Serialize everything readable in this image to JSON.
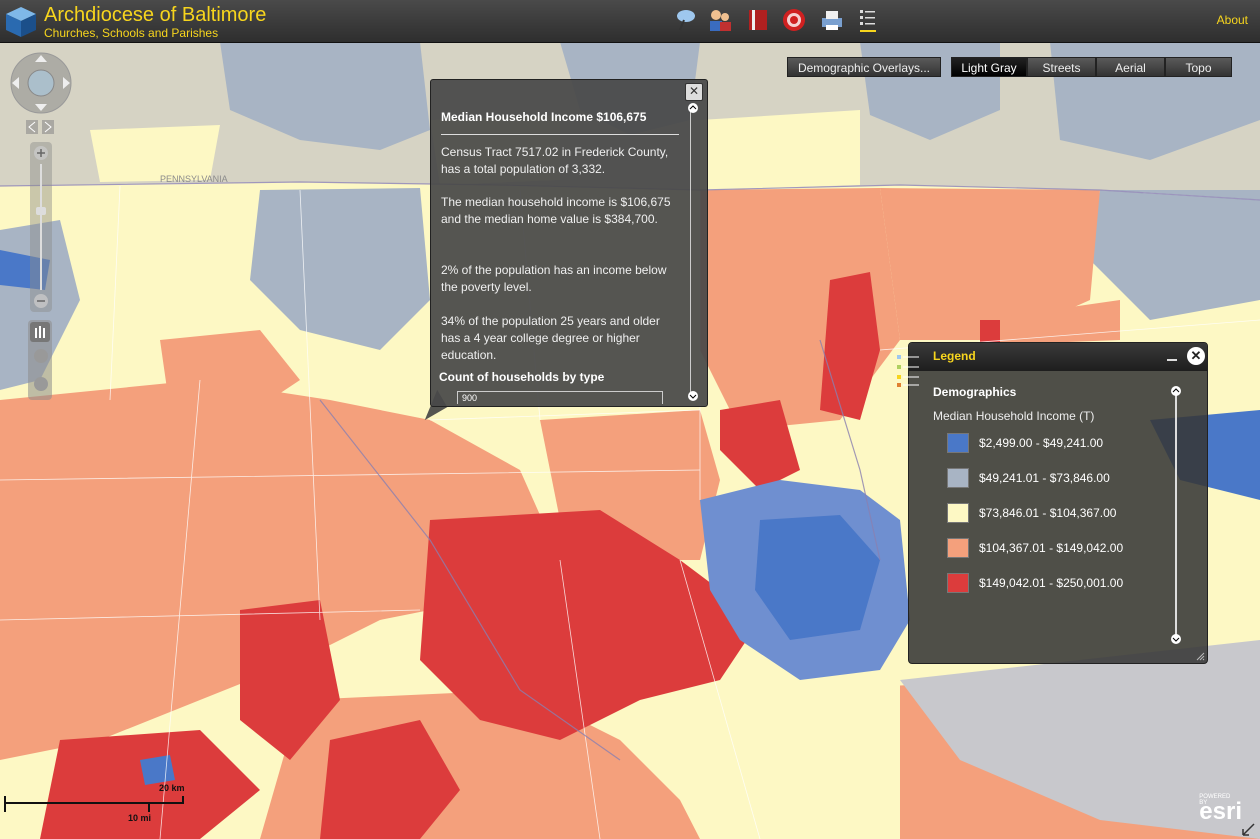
{
  "header": {
    "title": "Archdiocese of Baltimore",
    "subtitle": "Churches, Schools and Parishes",
    "about_label": "About",
    "tools": [
      "pushpin-icon",
      "people-icon",
      "book-icon",
      "target-icon",
      "print-icon",
      "list-icon"
    ]
  },
  "toolbar": {
    "demographic_overlays_label": "Demographic Overlays...",
    "basemaps": [
      {
        "label": "Light Gray",
        "active": true
      },
      {
        "label": "Streets",
        "active": false
      },
      {
        "label": "Aerial",
        "active": false
      },
      {
        "label": "Topo",
        "active": false
      }
    ]
  },
  "popup": {
    "title": "Median Household Income $106,675",
    "p1": "Census Tract 7517.02 in Frederick County, has a total population of 3,332.",
    "p2": "The median household income is $106,675 and the median home value is $384,700.",
    "p3": "2% of the population has an income below the poverty level.",
    "p4": "34% of the population 25 years and older has a 4 year college degree or higher education.",
    "chart_title": "Count of households by type",
    "chart_axis_value": "900"
  },
  "legend": {
    "title": "Legend",
    "group": "Demographics",
    "layer": "Median Household Income (T)",
    "items": [
      {
        "label": "$2,499.00 - $49,241.00",
        "color": "#4a78c8"
      },
      {
        "label": "$49,241.01 - $73,846.00",
        "color": "#a8b4c4"
      },
      {
        "label": "$73,846.01 - $104,367.00",
        "color": "#fdf8c4"
      },
      {
        "label": "$104,367.01 - $149,042.00",
        "color": "#f4a07c"
      },
      {
        "label": "$149,042.01 - $250,001.00",
        "color": "#dc3c3c"
      }
    ]
  },
  "map": {
    "state_label": "PENNSYLVANIA",
    "colors": {
      "low": "#4a78c8",
      "lowmid": "#a8b4c4",
      "mid": "#fdf8c4",
      "highmid": "#f4a07c",
      "high": "#dc3c3c",
      "base": "#d8d4c0",
      "water": "#c8c8cc"
    }
  },
  "scale": {
    "km_label": "20 km",
    "mi_label": "10 mi"
  },
  "attribution": {
    "powered_by": "POWERED BY",
    "brand": "esri"
  }
}
